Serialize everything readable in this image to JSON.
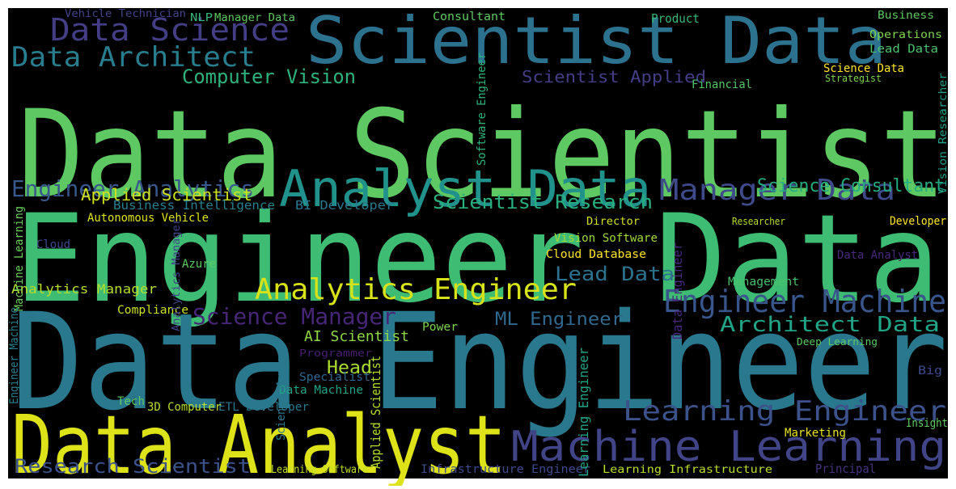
{
  "words": [
    {
      "text": "Data Scientist",
      "color": "#5ec962"
    },
    {
      "text": "Engineer Data",
      "color": "#3fbc73"
    },
    {
      "text": "Data Engineer",
      "color": "#2a788e"
    },
    {
      "text": "Data Analyst",
      "color": "#dde318"
    },
    {
      "text": "Scientist Data",
      "color": "#2c728e"
    },
    {
      "text": "Analyst Data",
      "color": "#21918c"
    },
    {
      "text": "Machine Learning",
      "color": "#414487"
    },
    {
      "text": "Analytics Engineer",
      "color": "#d8e219"
    },
    {
      "text": "Data Science",
      "color": "#433e85"
    },
    {
      "text": "Data Architect",
      "color": "#287d8e"
    },
    {
      "text": "Engineer Machine",
      "color": "#39568c"
    },
    {
      "text": "Learning Engineer",
      "color": "#3b528b"
    },
    {
      "text": "Manager Data",
      "color": "#3e4a89"
    },
    {
      "text": "Engineer Analytics",
      "color": "#38588c"
    },
    {
      "text": "Science Manager",
      "color": "#482677"
    },
    {
      "text": "Research Scientist",
      "color": "#3b528b"
    },
    {
      "text": "Architect Data",
      "color": "#20a386"
    },
    {
      "text": "Scientist Research",
      "color": "#29af7f"
    },
    {
      "text": "Science Consultant",
      "color": "#25ab82"
    },
    {
      "text": "Computer Vision",
      "color": "#2db27d"
    },
    {
      "text": "Applied Scientist",
      "color": "#cde11d"
    },
    {
      "text": "Scientist Applied",
      "color": "#433e85"
    },
    {
      "text": "Lead Data",
      "color": "#2c728e"
    },
    {
      "text": "ML Engineer",
      "color": "#31688e"
    },
    {
      "text": "AI Scientist",
      "color": "#8fd744"
    },
    {
      "text": "Head",
      "color": "#addc30"
    },
    {
      "text": "Analytics Manager",
      "color": "#b5de2b"
    },
    {
      "text": "Business Intelligence",
      "color": "#277f8e"
    },
    {
      "text": "BI Developer",
      "color": "#2a788e"
    },
    {
      "text": "Director",
      "color": "#d0e11c"
    },
    {
      "text": "Cloud Database",
      "color": "#fde725"
    },
    {
      "text": "Vision Software",
      "color": "#a0da39"
    },
    {
      "text": "Learning Software",
      "color": "#c2df23"
    },
    {
      "text": "Infrastructure Engineer",
      "color": "#3e4a89"
    },
    {
      "text": "Learning Infrastructure",
      "color": "#b8de29"
    },
    {
      "text": "Principal",
      "color": "#46327e"
    },
    {
      "text": "Operations",
      "color": "#7fd34e"
    },
    {
      "text": "Lead Data",
      "color": "#4ac16d"
    },
    {
      "text": "Business",
      "color": "#5ec962"
    },
    {
      "text": "Product",
      "color": "#37b878"
    },
    {
      "text": "Consultant",
      "color": "#5ec962"
    },
    {
      "text": "Vehicle Technician",
      "color": "#414487"
    },
    {
      "text": "NLP",
      "color": "#35b779"
    },
    {
      "text": "Manager Data",
      "color": "#5ec962"
    },
    {
      "text": "Autonomous Vehicle",
      "color": "#dde318"
    },
    {
      "text": "Developer",
      "color": "#fde725"
    },
    {
      "text": "Researcher",
      "color": "#b8de29"
    },
    {
      "text": "Marketing",
      "color": "#e5e419"
    },
    {
      "text": "Insight",
      "color": "#5ec962"
    },
    {
      "text": "Management",
      "color": "#4ac16d"
    },
    {
      "text": "Data Analyst",
      "color": "#482878"
    },
    {
      "text": "ETL Developer",
      "color": "#2a788e"
    },
    {
      "text": "3D Computer",
      "color": "#b8de29"
    },
    {
      "text": "Data Machine",
      "color": "#20a386"
    },
    {
      "text": "Specialist",
      "color": "#31688e"
    },
    {
      "text": "Power",
      "color": "#7fd34e"
    },
    {
      "text": "Compliance",
      "color": "#cde11d"
    },
    {
      "text": "Financial",
      "color": "#52c569"
    },
    {
      "text": "Science Data",
      "color": "#fde725"
    },
    {
      "text": "Azure",
      "color": "#5ec962"
    },
    {
      "text": "Cloud",
      "color": "#3e4a89"
    },
    {
      "text": "Big",
      "color": "#3e4a89"
    },
    {
      "text": "Deep Learning",
      "color": "#5ec962"
    },
    {
      "text": "Tech",
      "color": "#5ec962"
    },
    {
      "text": "Programmer",
      "color": "#481f70"
    },
    {
      "text": "Strategist",
      "color": "#7fd34e"
    },
    {
      "text": "Machine Learning",
      "color": "#6ccd5a"
    },
    {
      "text": "Software Engineer",
      "color": "#2db27d"
    },
    {
      "text": "Learning Engineer",
      "color": "#20a386"
    },
    {
      "text": "Applied Scientist",
      "color": "#b5de2b"
    },
    {
      "text": "Data Engineer",
      "color": "#482878"
    },
    {
      "text": "Engineer Machine",
      "color": "#277f8e"
    },
    {
      "text": "Science Manager",
      "color": "#2a788e"
    },
    {
      "text": "Vision Researcher",
      "color": "#1f9e89"
    },
    {
      "text": "Analytics Manager",
      "color": "#414487"
    }
  ]
}
